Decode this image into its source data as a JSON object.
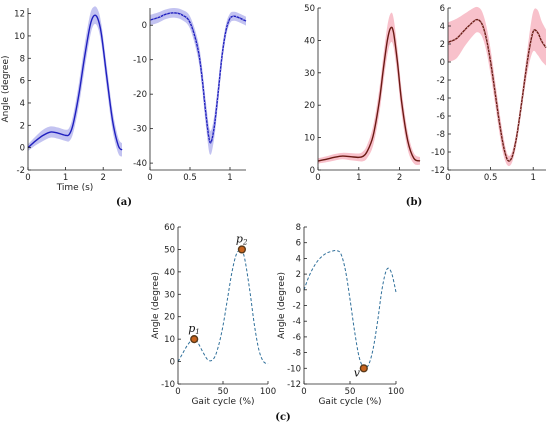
{
  "panel_labels": [
    "(a)",
    "(b)",
    "(c)"
  ],
  "colors": {
    "blue_line": "#1f1fbf",
    "blue_band": "#b8b8ee",
    "red_line": "#6b1a14",
    "red_band": "#f7b6c2",
    "dashed_line": "#2f6f9a",
    "marker_fill": "#c8641e",
    "marker_edge": "#5a3a1a"
  },
  "chart_data": [
    {
      "id": "a-left",
      "type": "line",
      "xlabel": "Time (s)",
      "ylabel": "Angle (degree)",
      "xlim": [
        0,
        2.5
      ],
      "ylim": [
        -2,
        12.5
      ],
      "xticks": [
        "0",
        "1",
        "2"
      ],
      "xtick_values": [
        0,
        1,
        2
      ],
      "yticks": [
        "-2",
        "0",
        "2",
        "4",
        "6",
        "8",
        "10",
        "12"
      ],
      "ytick_values": [
        -2,
        0,
        2,
        4,
        6,
        8,
        10,
        12
      ],
      "x": [
        0,
        0.2,
        0.4,
        0.6,
        0.8,
        1.0,
        1.1,
        1.2,
        1.35,
        1.5,
        1.65,
        1.75,
        1.85,
        1.95,
        2.1,
        2.25,
        2.4,
        2.5
      ],
      "mean": [
        0,
        0.6,
        1.1,
        1.4,
        1.3,
        1.1,
        1.2,
        2.1,
        4.7,
        8.0,
        10.9,
        11.8,
        11.6,
        10.2,
        6.2,
        2.4,
        0.2,
        -0.2
      ],
      "band": [
        0.3,
        0.4,
        0.5,
        0.5,
        0.5,
        0.5,
        0.6,
        0.8,
        1.0,
        1.1,
        1.0,
        0.8,
        0.8,
        0.9,
        1.0,
        0.9,
        0.7,
        0.6
      ]
    },
    {
      "id": "a-right",
      "type": "line",
      "xlim": [
        0,
        1.2
      ],
      "ylim": [
        -42,
        5
      ],
      "xticks": [
        "0",
        "0.5",
        "1"
      ],
      "xtick_values": [
        0,
        0.5,
        1
      ],
      "yticks": [
        "-40",
        "-30",
        "-20",
        "-10",
        "0"
      ],
      "ytick_values": [
        -40,
        -30,
        -20,
        -10,
        0
      ],
      "x": [
        0,
        0.1,
        0.2,
        0.3,
        0.4,
        0.5,
        0.6,
        0.65,
        0.7,
        0.75,
        0.8,
        0.85,
        0.9,
        0.95,
        1.0,
        1.05,
        1.1,
        1.2
      ],
      "mean": [
        1.5,
        2.2,
        3.2,
        3.6,
        3.0,
        0.8,
        -7,
        -15,
        -26,
        -34,
        -30,
        -20,
        -9,
        -1.5,
        2.0,
        2.6,
        2.3,
        1.2
      ],
      "band": [
        1.5,
        1.5,
        1.4,
        1.4,
        1.5,
        1.8,
        2.5,
        3.0,
        3.5,
        3.5,
        3.2,
        2.8,
        2.2,
        1.8,
        1.4,
        1.3,
        1.3,
        1.3
      ]
    },
    {
      "id": "b-left",
      "type": "line",
      "xlim": [
        0,
        2.5
      ],
      "ylim": [
        0,
        50
      ],
      "xticks": [
        "0",
        "1",
        "2"
      ],
      "xtick_values": [
        0,
        1,
        2
      ],
      "yticks": [
        "0",
        "10",
        "20",
        "30",
        "40",
        "50"
      ],
      "ytick_values": [
        0,
        10,
        20,
        30,
        40,
        50
      ],
      "x": [
        0,
        0.2,
        0.4,
        0.6,
        0.8,
        1.0,
        1.1,
        1.2,
        1.35,
        1.5,
        1.6,
        1.7,
        1.78,
        1.85,
        1.95,
        2.05,
        2.2,
        2.35,
        2.5
      ],
      "mean": [
        2.8,
        3.3,
        3.9,
        4.3,
        4.1,
        3.9,
        4.2,
        5.6,
        10.5,
        21,
        31,
        40,
        43.8,
        42.5,
        33,
        21,
        9,
        3.6,
        2.8
      ],
      "band": [
        0.8,
        0.9,
        1.0,
        1.0,
        1.1,
        1.2,
        1.5,
        2.0,
        3.0,
        3.8,
        4.2,
        4.5,
        4.5,
        4.5,
        4.3,
        3.8,
        2.8,
        1.6,
        1.2
      ]
    },
    {
      "id": "b-right",
      "type": "line",
      "xlim": [
        0,
        1.15
      ],
      "ylim": [
        -12,
        6
      ],
      "xticks": [
        "0",
        "0.5",
        "1"
      ],
      "xtick_values": [
        0,
        0.5,
        1
      ],
      "yticks": [
        "-12",
        "-10",
        "-8",
        "-6",
        "-4",
        "-2",
        "0",
        "2",
        "4",
        "6"
      ],
      "ytick_values": [
        -12,
        -10,
        -8,
        -6,
        -4,
        -2,
        0,
        2,
        4,
        6
      ],
      "x": [
        0,
        0.1,
        0.2,
        0.3,
        0.35,
        0.4,
        0.45,
        0.5,
        0.55,
        0.6,
        0.65,
        0.7,
        0.75,
        0.8,
        0.85,
        0.9,
        0.95,
        1.0,
        1.05,
        1.1,
        1.15
      ],
      "mean": [
        2.2,
        2.6,
        3.6,
        4.5,
        4.7,
        4.2,
        2.6,
        0.0,
        -3.2,
        -6.5,
        -9.3,
        -10.9,
        -10.6,
        -8.6,
        -5.5,
        -2.0,
        1.2,
        3.4,
        3.3,
        2.3,
        1.6
      ],
      "band": [
        2.2,
        2.2,
        1.8,
        1.5,
        1.4,
        1.4,
        1.4,
        1.4,
        1.3,
        1.2,
        1.0,
        0.6,
        0.6,
        0.7,
        0.8,
        1.0,
        1.5,
        2.2,
        2.5,
        2.2,
        2.0
      ]
    },
    {
      "id": "c-left",
      "type": "line",
      "xlabel": "Gait cycle (%)",
      "ylabel": "Angle (degree)",
      "xlim": [
        0,
        100
      ],
      "ylim": [
        -10,
        60
      ],
      "xticks": [
        "0",
        "50",
        "100"
      ],
      "xtick_values": [
        0,
        50,
        100
      ],
      "yticks": [
        "-10",
        "0",
        "10",
        "20",
        "30",
        "40",
        "50",
        "60"
      ],
      "ytick_values": [
        -10,
        0,
        10,
        20,
        30,
        40,
        50,
        60
      ],
      "x": [
        0,
        5,
        10,
        15,
        18,
        22,
        28,
        34,
        40,
        45,
        50,
        55,
        60,
        65,
        70,
        72,
        75,
        80,
        85,
        90,
        95,
        100
      ],
      "values": [
        0,
        3.5,
        7,
        9.5,
        10,
        8.5,
        4,
        0.5,
        1.5,
        7,
        16,
        28,
        40,
        48,
        50,
        49,
        44,
        31,
        16,
        5,
        0,
        -1
      ],
      "points": [
        {
          "label": "p",
          "sub": "1",
          "x": 18,
          "y": 10
        },
        {
          "label": "p",
          "sub": "2",
          "x": 71,
          "y": 50
        }
      ]
    },
    {
      "id": "c-right",
      "type": "line",
      "xlabel": "Gait cycle (%)",
      "ylabel": "Angle (degree)",
      "xlim": [
        0,
        100
      ],
      "ylim": [
        -12,
        8
      ],
      "xticks": [
        "0",
        "50",
        "100"
      ],
      "xtick_values": [
        0,
        50,
        100
      ],
      "yticks": [
        "-12",
        "-10",
        "-8",
        "-6",
        "-4",
        "-2",
        "0",
        "2",
        "4",
        "6",
        "8"
      ],
      "ytick_values": [
        -12,
        -10,
        -8,
        -6,
        -4,
        -2,
        0,
        2,
        4,
        6,
        8
      ],
      "x": [
        0,
        5,
        10,
        15,
        20,
        25,
        30,
        35,
        40,
        45,
        50,
        55,
        60,
        65,
        70,
        75,
        80,
        85,
        90,
        95,
        100
      ],
      "values": [
        0,
        1.6,
        2.8,
        3.7,
        4.3,
        4.7,
        4.9,
        5.0,
        4.6,
        2.5,
        -1.2,
        -5.3,
        -8.6,
        -9.9,
        -9.6,
        -7.6,
        -4.0,
        0.2,
        2.6,
        2.2,
        -0.3
      ],
      "points": [
        {
          "label": "v",
          "sub": "",
          "x": 65,
          "y": -10
        }
      ]
    }
  ]
}
